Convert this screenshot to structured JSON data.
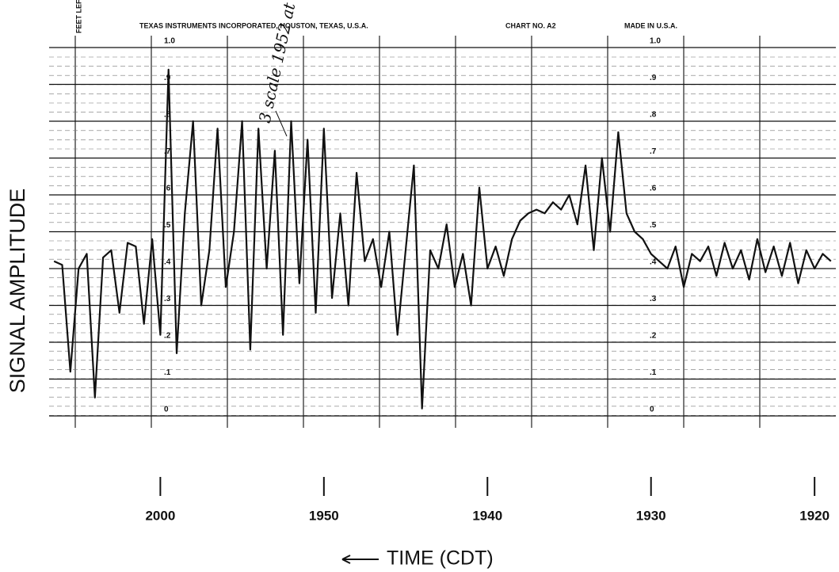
{
  "chart_data": {
    "type": "line",
    "header": [
      "TEXAS INSTRUMENTS INCORPORATED, HOUSTON, TEXAS, U.S.A.",
      "CHART NO. A2",
      "MADE IN U.S.A."
    ],
    "corner_label": "FEET LEFT",
    "annotation": "3 scale 1952 at",
    "ylabel": "SIGNAL AMPLITUDE",
    "xlabel": "TIME (CDT)",
    "color": "#111111",
    "grid": true,
    "xlim": [
      1206.8,
      1158.7
    ],
    "xticks": [
      {
        "value": 1200,
        "label": "2000"
      },
      {
        "value": 1190,
        "label": "1950"
      },
      {
        "value": 1180,
        "label": "1940"
      },
      {
        "value": 1170,
        "label": "1930"
      },
      {
        "value": 1160,
        "label": "1920"
      }
    ],
    "ylim": [
      0,
      1
    ],
    "yticks": [
      0,
      {
        "value": 0.1,
        "label": ".1"
      },
      {
        "value": 0.2,
        "label": ".2"
      },
      {
        "value": 0.3,
        "label": ".3"
      },
      {
        "value": 0.4,
        "label": ".4"
      },
      {
        "value": 0.5,
        "label": ".5"
      },
      {
        "value": 0.6,
        "label": ".6"
      },
      {
        "value": 0.7,
        "label": ".7"
      },
      {
        "value": 0.8,
        "label": ".8"
      },
      {
        "value": 0.9,
        "label": ".9"
      },
      {
        "value": 1,
        "label": "1.0"
      }
    ],
    "x": [
      1206.5,
      1206,
      1205.5,
      1205,
      1204.5,
      1204,
      1203.5,
      1203,
      1202.5,
      1202,
      1201.5,
      1201,
      1200.5,
      1200,
      1199.5,
      1199,
      1198.5,
      1198,
      1197.5,
      1197,
      1196.5,
      1196,
      1195.5,
      1195,
      1194.5,
      1194,
      1193.5,
      1193,
      1192.5,
      1192,
      1191.5,
      1191,
      1190.5,
      1190,
      1189.5,
      1189,
      1188.5,
      1188,
      1187.5,
      1187,
      1186.5,
      1186,
      1185.5,
      1185,
      1184.5,
      1184,
      1183.5,
      1183,
      1182.5,
      1182,
      1181.5,
      1181,
      1180.5,
      1180,
      1179.5,
      1179,
      1178.5,
      1178,
      1177.5,
      1177,
      1176.5,
      1176,
      1175.5,
      1175,
      1174.5,
      1174,
      1173.5,
      1173,
      1172.5,
      1172,
      1171.5,
      1171,
      1170.5,
      1170,
      1169.5,
      1169,
      1168.5,
      1168,
      1167.5,
      1167,
      1166.5,
      1166,
      1165.5,
      1165,
      1164.5,
      1164,
      1163.5,
      1163,
      1162.5,
      1162,
      1161.5,
      1161,
      1160.5,
      1160,
      1159.5,
      1159
    ],
    "values": [
      0.42,
      0.41,
      0.12,
      0.4,
      0.44,
      0.05,
      0.43,
      0.45,
      0.28,
      0.47,
      0.46,
      0.25,
      0.48,
      0.22,
      0.94,
      0.17,
      0.55,
      0.8,
      0.3,
      0.45,
      0.78,
      0.35,
      0.5,
      0.8,
      0.18,
      0.78,
      0.4,
      0.72,
      0.22,
      0.8,
      0.36,
      0.75,
      0.28,
      0.78,
      0.32,
      0.55,
      0.3,
      0.66,
      0.42,
      0.48,
      0.35,
      0.5,
      0.22,
      0.45,
      0.68,
      0.02,
      0.45,
      0.4,
      0.52,
      0.35,
      0.44,
      0.3,
      0.62,
      0.4,
      0.46,
      0.38,
      0.48,
      0.53,
      0.55,
      0.56,
      0.55,
      0.58,
      0.56,
      0.6,
      0.52,
      0.68,
      0.45,
      0.7,
      0.5,
      0.77,
      0.55,
      0.5,
      0.48,
      0.44,
      0.42,
      0.4,
      0.46,
      0.35,
      0.44,
      0.42,
      0.46,
      0.38,
      0.47,
      0.4,
      0.45,
      0.37,
      0.48,
      0.39,
      0.46,
      0.38,
      0.47,
      0.36,
      0.45,
      0.4,
      0.44,
      0.42
    ]
  }
}
